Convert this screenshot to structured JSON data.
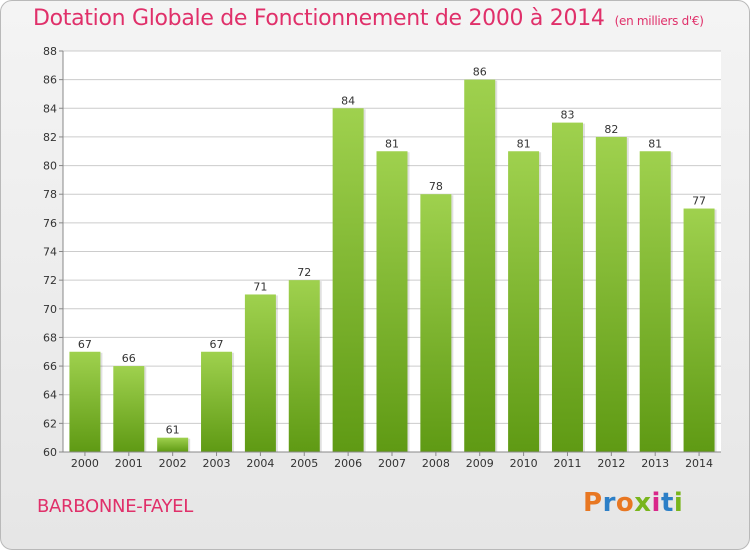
{
  "header": {
    "title": "Dotation Globale de Fonctionnement de 2000 à 2014",
    "unit": "(en milliers d'€)"
  },
  "footer": {
    "place": "BARBONNE-FAYEL",
    "logo": "Proxiti"
  },
  "colors": {
    "accent": "#e0306a",
    "bar_top": "#9fd14e",
    "bar_bottom": "#5f9a14",
    "grid": "#cccccc"
  },
  "chart_data": {
    "type": "bar",
    "title": "Dotation Globale de Fonctionnement de 2000 à 2014",
    "subtitle": "(en milliers d'€)",
    "categories": [
      "2000",
      "2001",
      "2002",
      "2003",
      "2004",
      "2005",
      "2006",
      "2007",
      "2008",
      "2009",
      "2010",
      "2011",
      "2012",
      "2013",
      "2014"
    ],
    "values": [
      67,
      66,
      61,
      67,
      71,
      72,
      84,
      81,
      78,
      86,
      81,
      83,
      82,
      81,
      77
    ],
    "ylim": [
      60,
      88
    ],
    "yticks": [
      60,
      62,
      64,
      66,
      68,
      70,
      72,
      74,
      76,
      78,
      80,
      82,
      84,
      86,
      88
    ],
    "grid": true,
    "data_labels": true,
    "xlabel": "",
    "ylabel": ""
  }
}
